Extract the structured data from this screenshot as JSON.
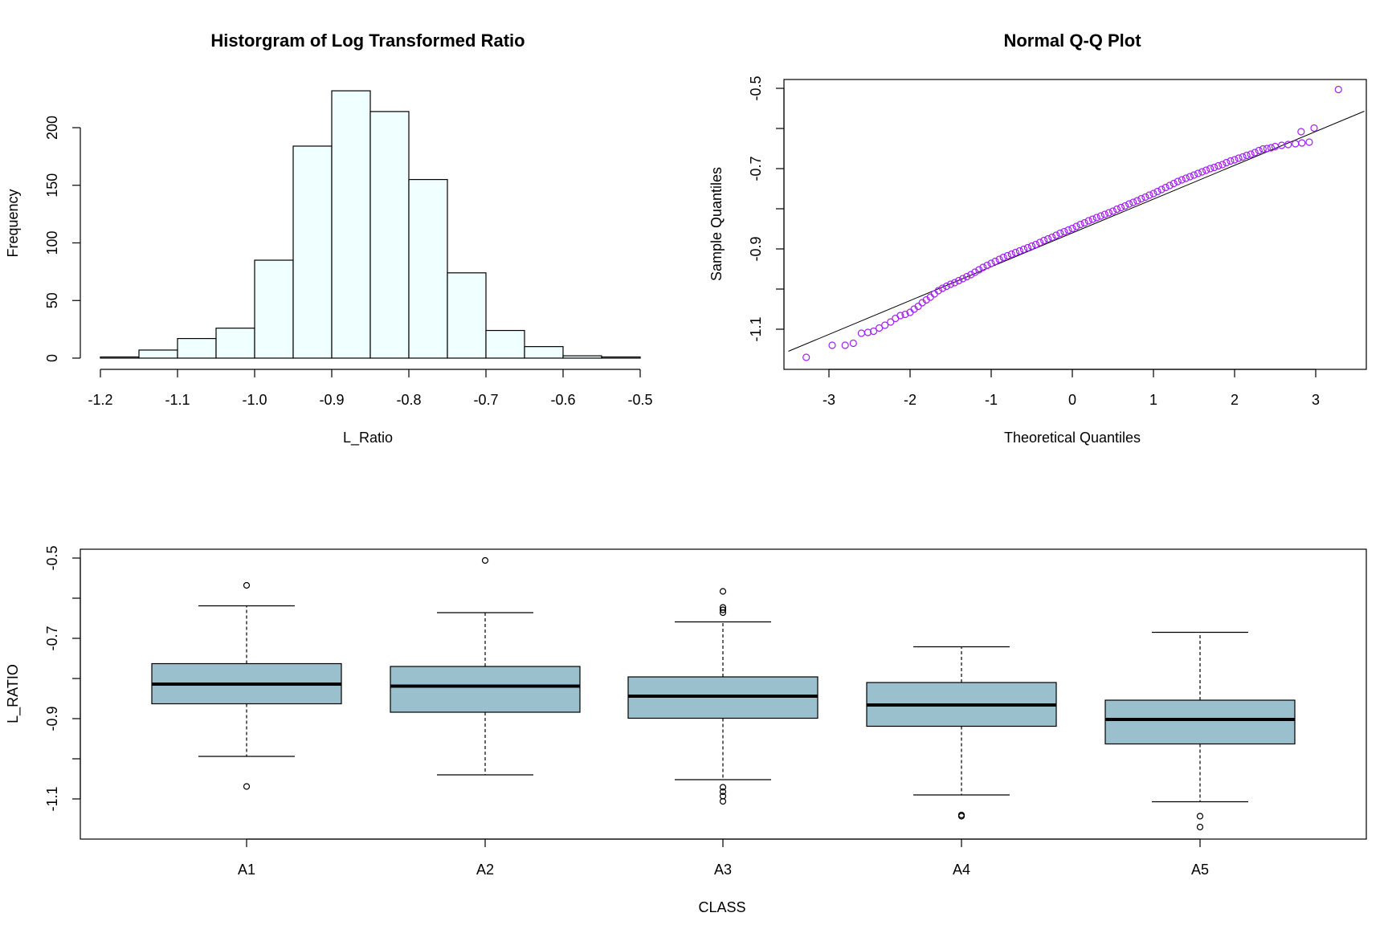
{
  "chart_data": [
    {
      "type": "histogram",
      "title": "Historgram of Log Transformed Ratio",
      "xlabel": "L_Ratio",
      "ylabel": "Frequency",
      "xlim": [
        -1.2,
        -0.5
      ],
      "ylim": [
        0,
        240
      ],
      "bins": [
        {
          "from": -1.2,
          "to": -1.15,
          "count": 1
        },
        {
          "from": -1.15,
          "to": -1.1,
          "count": 7
        },
        {
          "from": -1.1,
          "to": -1.05,
          "count": 17
        },
        {
          "from": -1.05,
          "to": -1.0,
          "count": 26
        },
        {
          "from": -1.0,
          "to": -0.95,
          "count": 85
        },
        {
          "from": -0.95,
          "to": -0.9,
          "count": 184
        },
        {
          "from": -0.9,
          "to": -0.85,
          "count": 232
        },
        {
          "from": -0.85,
          "to": -0.8,
          "count": 214
        },
        {
          "from": -0.8,
          "to": -0.75,
          "count": 155
        },
        {
          "from": -0.75,
          "to": -0.7,
          "count": 74
        },
        {
          "from": -0.7,
          "to": -0.65,
          "count": 24
        },
        {
          "from": -0.65,
          "to": -0.6,
          "count": 10
        },
        {
          "from": -0.6,
          "to": -0.55,
          "count": 2
        },
        {
          "from": -0.55,
          "to": -0.5,
          "count": 1
        }
      ],
      "xticks": [
        -1.2,
        -1.1,
        -1.0,
        -0.9,
        -0.8,
        -0.7,
        -0.6,
        -0.5
      ],
      "xtick_labels": [
        "-1.2",
        "-1.1",
        "-1.0",
        "-0.9",
        "-0.8",
        "-0.7",
        "-0.6",
        "-0.5"
      ],
      "yticks": [
        0,
        50,
        100,
        150,
        200
      ],
      "ytick_labels": [
        "0",
        "50",
        "100",
        "150",
        "200"
      ],
      "bar_color": "#F0FFFF"
    },
    {
      "type": "scatter",
      "title": "Normal Q-Q Plot",
      "xlabel": "Theoretical Quantiles",
      "ylabel": "Sample Quantiles",
      "xlim": [
        -3.5,
        3.6
      ],
      "ylim": [
        -1.19,
        -0.49
      ],
      "xticks": [
        -3,
        -2,
        -1,
        0,
        1,
        2,
        3
      ],
      "xtick_labels": [
        "-3",
        "-2",
        "-1",
        "0",
        "1",
        "2",
        "3"
      ],
      "yticks": [
        -1.1,
        -1.0,
        -0.9,
        -0.8,
        -0.7,
        -0.6,
        -0.5
      ],
      "ytick_labels": [
        "-1.1",
        "",
        "-0.9",
        "",
        "-0.7",
        "",
        "-0.5"
      ],
      "point_color": "#A020F0",
      "points": [
        [
          -3.28,
          -1.17
        ],
        [
          -2.96,
          -1.14
        ],
        [
          -2.8,
          -1.14
        ],
        [
          -2.7,
          -1.135
        ],
        [
          -2.6,
          -1.11
        ],
        [
          -2.52,
          -1.108
        ],
        [
          -2.45,
          -1.105
        ],
        [
          -2.38,
          -1.097
        ],
        [
          -2.31,
          -1.09
        ],
        [
          -2.24,
          -1.082
        ],
        [
          -2.18,
          -1.073
        ],
        [
          -2.12,
          -1.066
        ],
        [
          -2.06,
          -1.063
        ],
        [
          -2.0,
          -1.058
        ],
        [
          -1.95,
          -1.05
        ],
        [
          -1.9,
          -1.043
        ],
        [
          -1.85,
          -1.034
        ],
        [
          -1.8,
          -1.027
        ],
        [
          -1.75,
          -1.02
        ],
        [
          -1.7,
          -1.012
        ],
        [
          -1.65,
          -1.004
        ],
        [
          -1.6,
          -0.998
        ],
        [
          -1.55,
          -0.993
        ],
        [
          -1.5,
          -0.988
        ],
        [
          -1.45,
          -0.984
        ],
        [
          -1.4,
          -0.979
        ],
        [
          -1.35,
          -0.974
        ],
        [
          -1.3,
          -0.969
        ],
        [
          -1.25,
          -0.964
        ],
        [
          -1.2,
          -0.958
        ],
        [
          -1.15,
          -0.952
        ],
        [
          -1.1,
          -0.946
        ],
        [
          -1.05,
          -0.941
        ],
        [
          -1.0,
          -0.936
        ],
        [
          -0.95,
          -0.931
        ],
        [
          -0.9,
          -0.926
        ],
        [
          -0.85,
          -0.921
        ],
        [
          -0.8,
          -0.917
        ],
        [
          -0.75,
          -0.913
        ],
        [
          -0.7,
          -0.909
        ],
        [
          -0.65,
          -0.905
        ],
        [
          -0.6,
          -0.901
        ],
        [
          -0.55,
          -0.897
        ],
        [
          -0.5,
          -0.893
        ],
        [
          -0.45,
          -0.889
        ],
        [
          -0.4,
          -0.884
        ],
        [
          -0.35,
          -0.879
        ],
        [
          -0.3,
          -0.875
        ],
        [
          -0.25,
          -0.871
        ],
        [
          -0.2,
          -0.866
        ],
        [
          -0.15,
          -0.861
        ],
        [
          -0.1,
          -0.857
        ],
        [
          -0.05,
          -0.853
        ],
        [
          0.0,
          -0.849
        ],
        [
          0.05,
          -0.844
        ],
        [
          0.1,
          -0.839
        ],
        [
          0.15,
          -0.835
        ],
        [
          0.2,
          -0.83
        ],
        [
          0.25,
          -0.826
        ],
        [
          0.3,
          -0.822
        ],
        [
          0.35,
          -0.818
        ],
        [
          0.4,
          -0.814
        ],
        [
          0.45,
          -0.81
        ],
        [
          0.5,
          -0.806
        ],
        [
          0.55,
          -0.801
        ],
        [
          0.6,
          -0.797
        ],
        [
          0.65,
          -0.793
        ],
        [
          0.7,
          -0.788
        ],
        [
          0.75,
          -0.784
        ],
        [
          0.8,
          -0.78
        ],
        [
          0.85,
          -0.775
        ],
        [
          0.9,
          -0.771
        ],
        [
          0.95,
          -0.766
        ],
        [
          1.0,
          -0.762
        ],
        [
          1.05,
          -0.757
        ],
        [
          1.1,
          -0.752
        ],
        [
          1.15,
          -0.747
        ],
        [
          1.2,
          -0.742
        ],
        [
          1.25,
          -0.737
        ],
        [
          1.3,
          -0.732
        ],
        [
          1.35,
          -0.728
        ],
        [
          1.4,
          -0.724
        ],
        [
          1.45,
          -0.72
        ],
        [
          1.5,
          -0.716
        ],
        [
          1.55,
          -0.712
        ],
        [
          1.6,
          -0.708
        ],
        [
          1.65,
          -0.704
        ],
        [
          1.7,
          -0.7
        ],
        [
          1.75,
          -0.697
        ],
        [
          1.8,
          -0.693
        ],
        [
          1.85,
          -0.69
        ],
        [
          1.9,
          -0.685
        ],
        [
          1.95,
          -0.681
        ],
        [
          2.0,
          -0.678
        ],
        [
          2.05,
          -0.674
        ],
        [
          2.1,
          -0.671
        ],
        [
          2.15,
          -0.667
        ],
        [
          2.2,
          -0.664
        ],
        [
          2.25,
          -0.66
        ],
        [
          2.3,
          -0.655
        ],
        [
          2.35,
          -0.651
        ],
        [
          2.4,
          -0.65
        ],
        [
          2.45,
          -0.648
        ],
        [
          2.5,
          -0.645
        ],
        [
          2.58,
          -0.642
        ],
        [
          2.66,
          -0.64
        ],
        [
          2.75,
          -0.638
        ],
        [
          2.83,
          -0.636
        ],
        [
          2.92,
          -0.634
        ],
        [
          2.82,
          -0.608
        ],
        [
          2.98,
          -0.599
        ],
        [
          3.28,
          -0.503
        ]
      ],
      "reference_line": {
        "from": [
          -3.5,
          -1.155
        ],
        "to": [
          3.6,
          -0.557
        ]
      }
    },
    {
      "type": "box",
      "title": "",
      "xlabel": "CLASS",
      "ylabel": "L_RATIO",
      "ylim": [
        -1.2,
        -0.48
      ],
      "categories": [
        "A1",
        "A2",
        "A3",
        "A4",
        "A5"
      ],
      "yticks": [
        -1.1,
        -1.0,
        -0.9,
        -0.8,
        -0.7,
        -0.6,
        -0.5
      ],
      "ytick_labels": [
        "-1.1",
        "",
        "-0.9",
        "",
        "-0.7",
        "",
        "-0.5"
      ],
      "box_color": "#9BC0CD",
      "boxes": [
        {
          "label": "A1",
          "whisker_low": -0.994,
          "q1": -0.863,
          "median": -0.814,
          "q3": -0.763,
          "whisker_high": -0.619,
          "outliers": [
            -1.069,
            -0.568
          ]
        },
        {
          "label": "A2",
          "whisker_low": -1.04,
          "q1": -0.884,
          "median": -0.819,
          "q3": -0.77,
          "whisker_high": -0.636,
          "outliers": [
            -0.506
          ]
        },
        {
          "label": "A3",
          "whisker_low": -1.052,
          "q1": -0.899,
          "median": -0.844,
          "q3": -0.796,
          "whisker_high": -0.659,
          "outliers": [
            -1.071,
            -1.082,
            -1.093,
            -1.106,
            -0.583,
            -0.623,
            -0.629,
            -0.636
          ]
        },
        {
          "label": "A4",
          "whisker_low": -1.09,
          "q1": -0.919,
          "median": -0.866,
          "q3": -0.81,
          "whisker_high": -0.721,
          "outliers": [
            -1.14,
            -1.143
          ]
        },
        {
          "label": "A5",
          "whisker_low": -1.107,
          "q1": -0.963,
          "median": -0.902,
          "q3": -0.854,
          "whisker_high": -0.685,
          "outliers": [
            -1.143,
            -1.17
          ]
        }
      ]
    }
  ]
}
